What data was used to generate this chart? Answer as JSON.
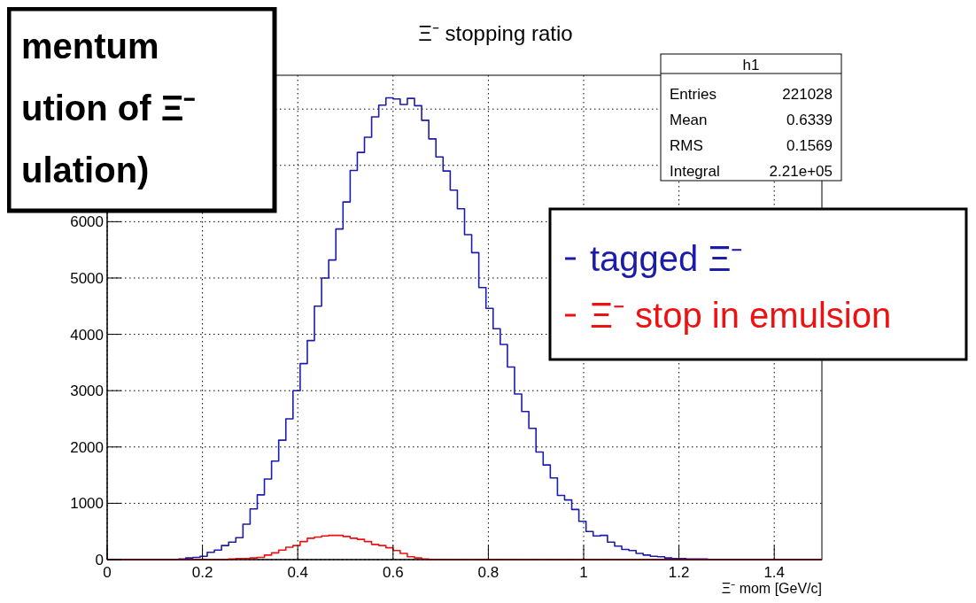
{
  "chart_data": {
    "type": "histogram",
    "title": "Ξ⁻ stopping ratio",
    "xlabel": "Ξ⁻ mom [GeV/c]",
    "bins": [
      0,
      0.015,
      0.03,
      0.045,
      0.06,
      0.075,
      0.09,
      0.105,
      0.12,
      0.135,
      0.15,
      0.165,
      0.18,
      0.195,
      0.21,
      0.225,
      0.24,
      0.255,
      0.27,
      0.285,
      0.3,
      0.315,
      0.33,
      0.345,
      0.36,
      0.375,
      0.39,
      0.405,
      0.42,
      0.435,
      0.45,
      0.465,
      0.48,
      0.495,
      0.51,
      0.525,
      0.54,
      0.555,
      0.57,
      0.585,
      0.6,
      0.615,
      0.63,
      0.645,
      0.66,
      0.675,
      0.69,
      0.705,
      0.72,
      0.735,
      0.75,
      0.765,
      0.78,
      0.795,
      0.81,
      0.825,
      0.84,
      0.855,
      0.87,
      0.885,
      0.9,
      0.915,
      0.93,
      0.945,
      0.96,
      0.975,
      0.99,
      1.005,
      1.02,
      1.035,
      1.05,
      1.065,
      1.08,
      1.095,
      1.11,
      1.125,
      1.14,
      1.155,
      1.17,
      1.185,
      1.2,
      1.215,
      1.23,
      1.245,
      1.26,
      1.275,
      1.29,
      1.305,
      1.32,
      1.335,
      1.35,
      1.365,
      1.38,
      1.395,
      1.41,
      1.425,
      1.44,
      1.455,
      1.47,
      1.485,
      1.5
    ],
    "series": [
      {
        "name": "tagged Ξ⁻",
        "color": "#1c1caa",
        "values": [
          0,
          0,
          0,
          0,
          0,
          0,
          0,
          0,
          0,
          0,
          10,
          30,
          40,
          60,
          130,
          170,
          250,
          310,
          390,
          630,
          900,
          1150,
          1430,
          1750,
          2120,
          2500,
          3000,
          3480,
          3890,
          4500,
          5000,
          5320,
          5870,
          6350,
          6910,
          7230,
          7500,
          7860,
          8070,
          8200,
          8180,
          8080,
          8190,
          8060,
          7800,
          7470,
          7150,
          6900,
          6560,
          6230,
          5770,
          5450,
          4830,
          4460,
          4100,
          3820,
          3420,
          2940,
          2630,
          2330,
          1910,
          1680,
          1450,
          1140,
          1060,
          890,
          680,
          500,
          420,
          430,
          310,
          240,
          180,
          160,
          110,
          80,
          60,
          50,
          30,
          20,
          20,
          10,
          10,
          10,
          0,
          0,
          0,
          0,
          0,
          0,
          0,
          0,
          0,
          0,
          0,
          0,
          0,
          0,
          0,
          0
        ]
      },
      {
        "name": "Ξ⁻ stop in emulsion",
        "color": "#ee1111",
        "values": [
          0,
          0,
          0,
          0,
          0,
          0,
          0,
          0,
          0,
          0,
          0,
          0,
          0,
          0,
          0,
          0,
          0,
          10,
          20,
          20,
          30,
          40,
          80,
          120,
          170,
          220,
          250,
          320,
          380,
          400,
          420,
          430,
          430,
          410,
          380,
          360,
          320,
          270,
          250,
          210,
          160,
          110,
          50,
          30,
          10,
          0,
          0,
          0,
          0,
          0,
          0,
          0,
          0,
          0,
          0,
          0,
          0,
          0,
          0,
          0,
          0,
          0,
          0,
          0,
          0,
          0,
          0,
          0,
          0,
          0,
          0,
          0,
          0,
          0,
          0,
          0,
          0,
          0,
          0,
          0,
          0,
          0,
          0,
          0,
          0,
          0,
          0,
          0,
          0,
          0,
          0,
          0,
          0,
          0,
          0,
          0,
          0,
          0,
          0,
          0
        ]
      }
    ],
    "xlim": [
      0,
      1.5
    ],
    "xticks": [
      0,
      0.2,
      0.4,
      0.6,
      0.8,
      1,
      1.2,
      1.4
    ],
    "ylim": [
      0,
      8600
    ],
    "yticks": [
      0,
      1000,
      2000,
      3000,
      4000,
      5000,
      6000,
      {
        "value": 7000,
        "label": null
      },
      {
        "value": 8000,
        "label": null
      }
    ],
    "grid": true,
    "legend": "right",
    "annotations": [
      "mentum\nution of Ξ⁻\nulation)",
      "h1",
      "Entries",
      "221028",
      "Mean",
      "0.6339",
      "RMS",
      "0.1569",
      "Integral",
      "2.21e+05"
    ]
  }
}
